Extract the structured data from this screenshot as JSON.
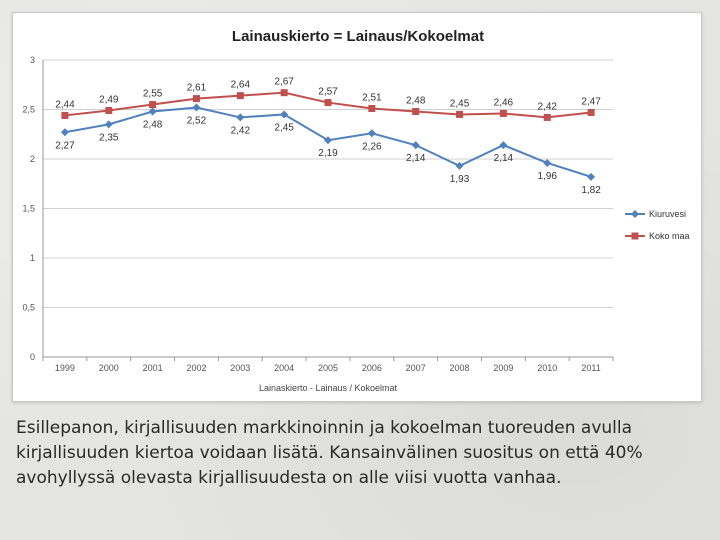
{
  "chart_data": {
    "type": "line",
    "title": "Lainauskierto = Lainaus/Kokoelmat",
    "xlabel": "Lainaskierto - Lainaus / Kokoelmat",
    "ylabel": "",
    "ylim": [
      0,
      3
    ],
    "yticks": [
      "0",
      "0,5",
      "1",
      "1,5",
      "2",
      "2,5",
      "3"
    ],
    "categories": [
      "1999",
      "2000",
      "2001",
      "2002",
      "2003",
      "2004",
      "2005",
      "2006",
      "2007",
      "2008",
      "2009",
      "2010",
      "2011"
    ],
    "grid": "horizontal",
    "legend_position": "right",
    "series": [
      {
        "name": "Kiuruvesi",
        "color": "#4f81bd",
        "marker": "diamond",
        "values": [
          2.27,
          2.35,
          2.48,
          2.52,
          2.42,
          2.45,
          2.19,
          2.26,
          2.14,
          1.93,
          2.14,
          1.96,
          1.82
        ],
        "labels": [
          "2,27",
          "2,35",
          "2,48",
          "2,52",
          "2,42",
          "2,45",
          "2,19",
          "2,26",
          "2,14",
          "1,93",
          "2,14",
          "1,96",
          "1,82"
        ]
      },
      {
        "name": "Koko maa",
        "color": "#c0504d",
        "marker": "square",
        "values": [
          2.44,
          2.49,
          2.55,
          2.61,
          2.64,
          2.67,
          2.57,
          2.51,
          2.48,
          2.45,
          2.46,
          2.42,
          2.47
        ],
        "labels": [
          "2,44",
          "2,49",
          "2,55",
          "2,61",
          "2,64",
          "2,67",
          "2,57",
          "2,51",
          "2,48",
          "2,45",
          "2,46",
          "2,42",
          "2,47"
        ]
      }
    ]
  },
  "caption": "Esillepanon, kirjallisuuden markkinoinnin ja kokoelman tuoreuden avulla kirjallisuuden kiertoa voidaan lisätä. Kansainvälinen suositus on että 40% avohyllyssä olevasta kirjallisuudesta on alle viisi vuotta vanhaa."
}
